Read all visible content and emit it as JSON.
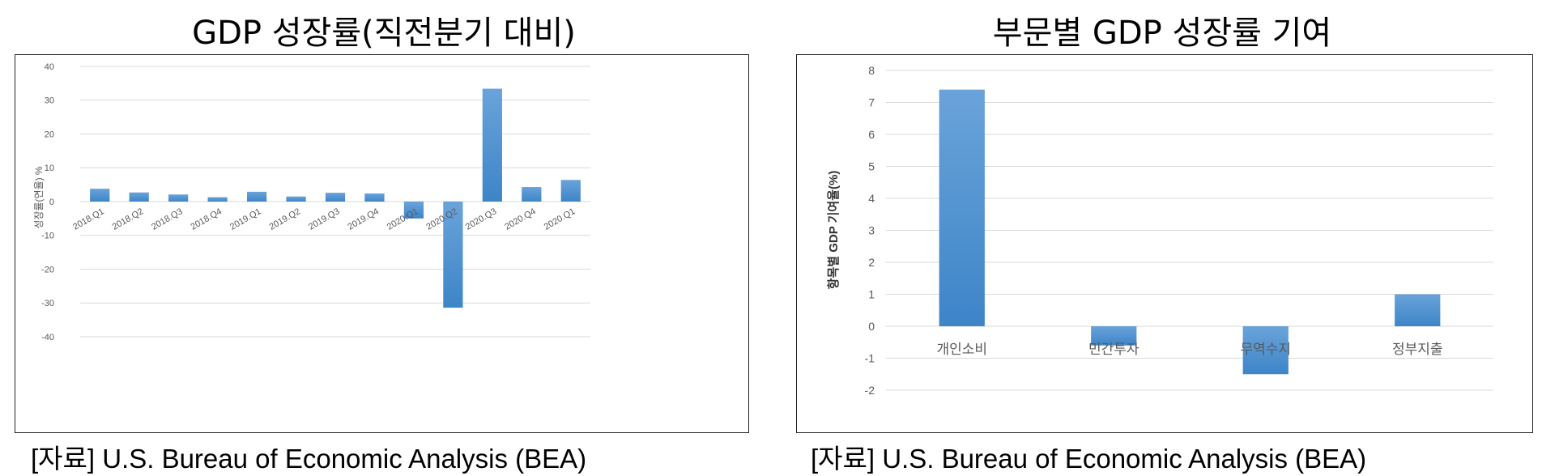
{
  "left_panel": {
    "title": "GDP 성장률(직전분기 대비)",
    "source": "[자료] U.S. Bureau of Economic Analysis (BEA)"
  },
  "right_panel": {
    "title": "부문별 GDP 성장률 기여",
    "source": "[자료] U.S. Bureau of Economic Analysis (BEA)"
  },
  "colors": {
    "bar_top": "#6aa3da",
    "bar_bottom": "#3d85c8",
    "grid": "#d9d9d9",
    "tick": "#595959"
  },
  "chart_data": [
    {
      "type": "bar",
      "title": "GDP 성장률(직전분기 대비)",
      "ylabel": "성장률(연율) %",
      "xlabel": "",
      "categories": [
        "2018.Q1",
        "2018.Q2",
        "2018.Q3",
        "2018.Q4",
        "2019.Q1",
        "2019.Q2",
        "2019.Q3",
        "2019.Q4",
        "2020.Q1",
        "2020.Q2",
        "2020.Q3",
        "2020.Q4",
        "2020.Q1"
      ],
      "values": [
        3.8,
        2.7,
        2.1,
        1.3,
        2.9,
        1.5,
        2.6,
        2.4,
        -5.0,
        -31.4,
        33.4,
        4.3,
        6.4
      ],
      "ylim": [
        -40,
        40
      ],
      "yticks": [
        -40,
        -30,
        -20,
        -10,
        0,
        10,
        20,
        30,
        40
      ],
      "grid": true
    },
    {
      "type": "bar",
      "title": "부문별 GDP 성장률 기여",
      "ylabel": "항목별 GDP 기여율(%)",
      "xlabel": "",
      "categories": [
        "개인소비",
        "민간투자",
        "무역수지",
        "정부지출"
      ],
      "values": [
        7.4,
        -0.6,
        -1.5,
        1.0
      ],
      "ylim": [
        -2,
        8
      ],
      "yticks": [
        -2,
        -1,
        0,
        1,
        2,
        3,
        4,
        5,
        6,
        7,
        8
      ],
      "grid": true
    }
  ]
}
